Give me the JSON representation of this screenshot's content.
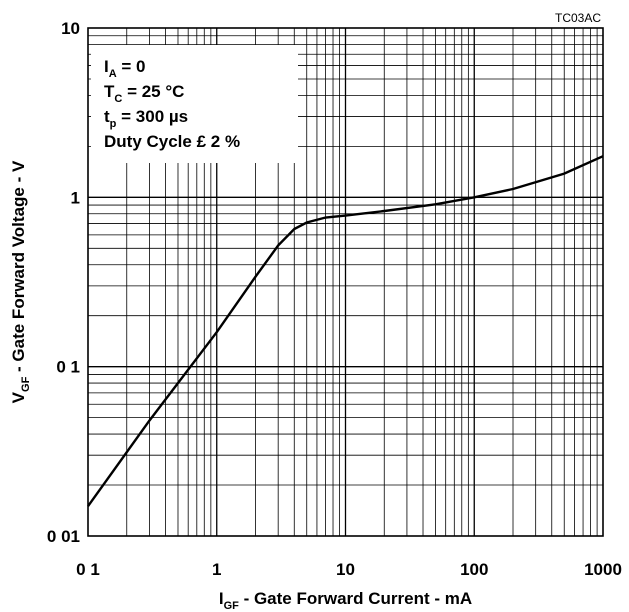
{
  "chart_data": {
    "type": "line",
    "code_label": "TC03AC",
    "x_scale": "log",
    "y_scale": "log",
    "xlim": [
      0.1,
      1000
    ],
    "ylim": [
      0.01,
      10
    ],
    "x_ticks": [
      {
        "value": 0.1,
        "label": "0 1"
      },
      {
        "value": 1,
        "label": "1"
      },
      {
        "value": 10,
        "label": "10"
      },
      {
        "value": 100,
        "label": "100"
      },
      {
        "value": 1000,
        "label": "1000"
      }
    ],
    "y_ticks": [
      {
        "value": 0.01,
        "label": "0 01"
      },
      {
        "value": 0.1,
        "label": "0 1"
      },
      {
        "value": 1,
        "label": "1"
      },
      {
        "value": 10,
        "label": "10"
      }
    ],
    "xlabel": {
      "main": "I",
      "sub": "GF",
      "rest": " - Gate Forward Current - mA"
    },
    "ylabel": {
      "main": "V",
      "sub": "GF",
      "rest": " - Gate Forward Voltage - V"
    },
    "grid": true,
    "annotations": [
      {
        "main": "I",
        "sub": "A",
        "rest": " = 0"
      },
      {
        "main": "T",
        "sub": "C",
        "rest": " = 25 °C"
      },
      {
        "main": "t",
        "sub": "p",
        "rest": " = 300 µs"
      },
      {
        "main": "Duty Cycle ",
        "sub": "",
        "rest": "£ 2 %"
      }
    ],
    "series": [
      {
        "color": "#000000",
        "x": [
          0.1,
          0.3,
          1,
          2,
          3,
          4,
          5,
          7,
          10,
          20,
          50,
          100,
          200,
          500,
          1000
        ],
        "y": [
          0.015,
          0.048,
          0.16,
          0.34,
          0.52,
          0.65,
          0.71,
          0.76,
          0.78,
          0.83,
          0.91,
          1.0,
          1.12,
          1.38,
          1.75
        ]
      }
    ]
  }
}
